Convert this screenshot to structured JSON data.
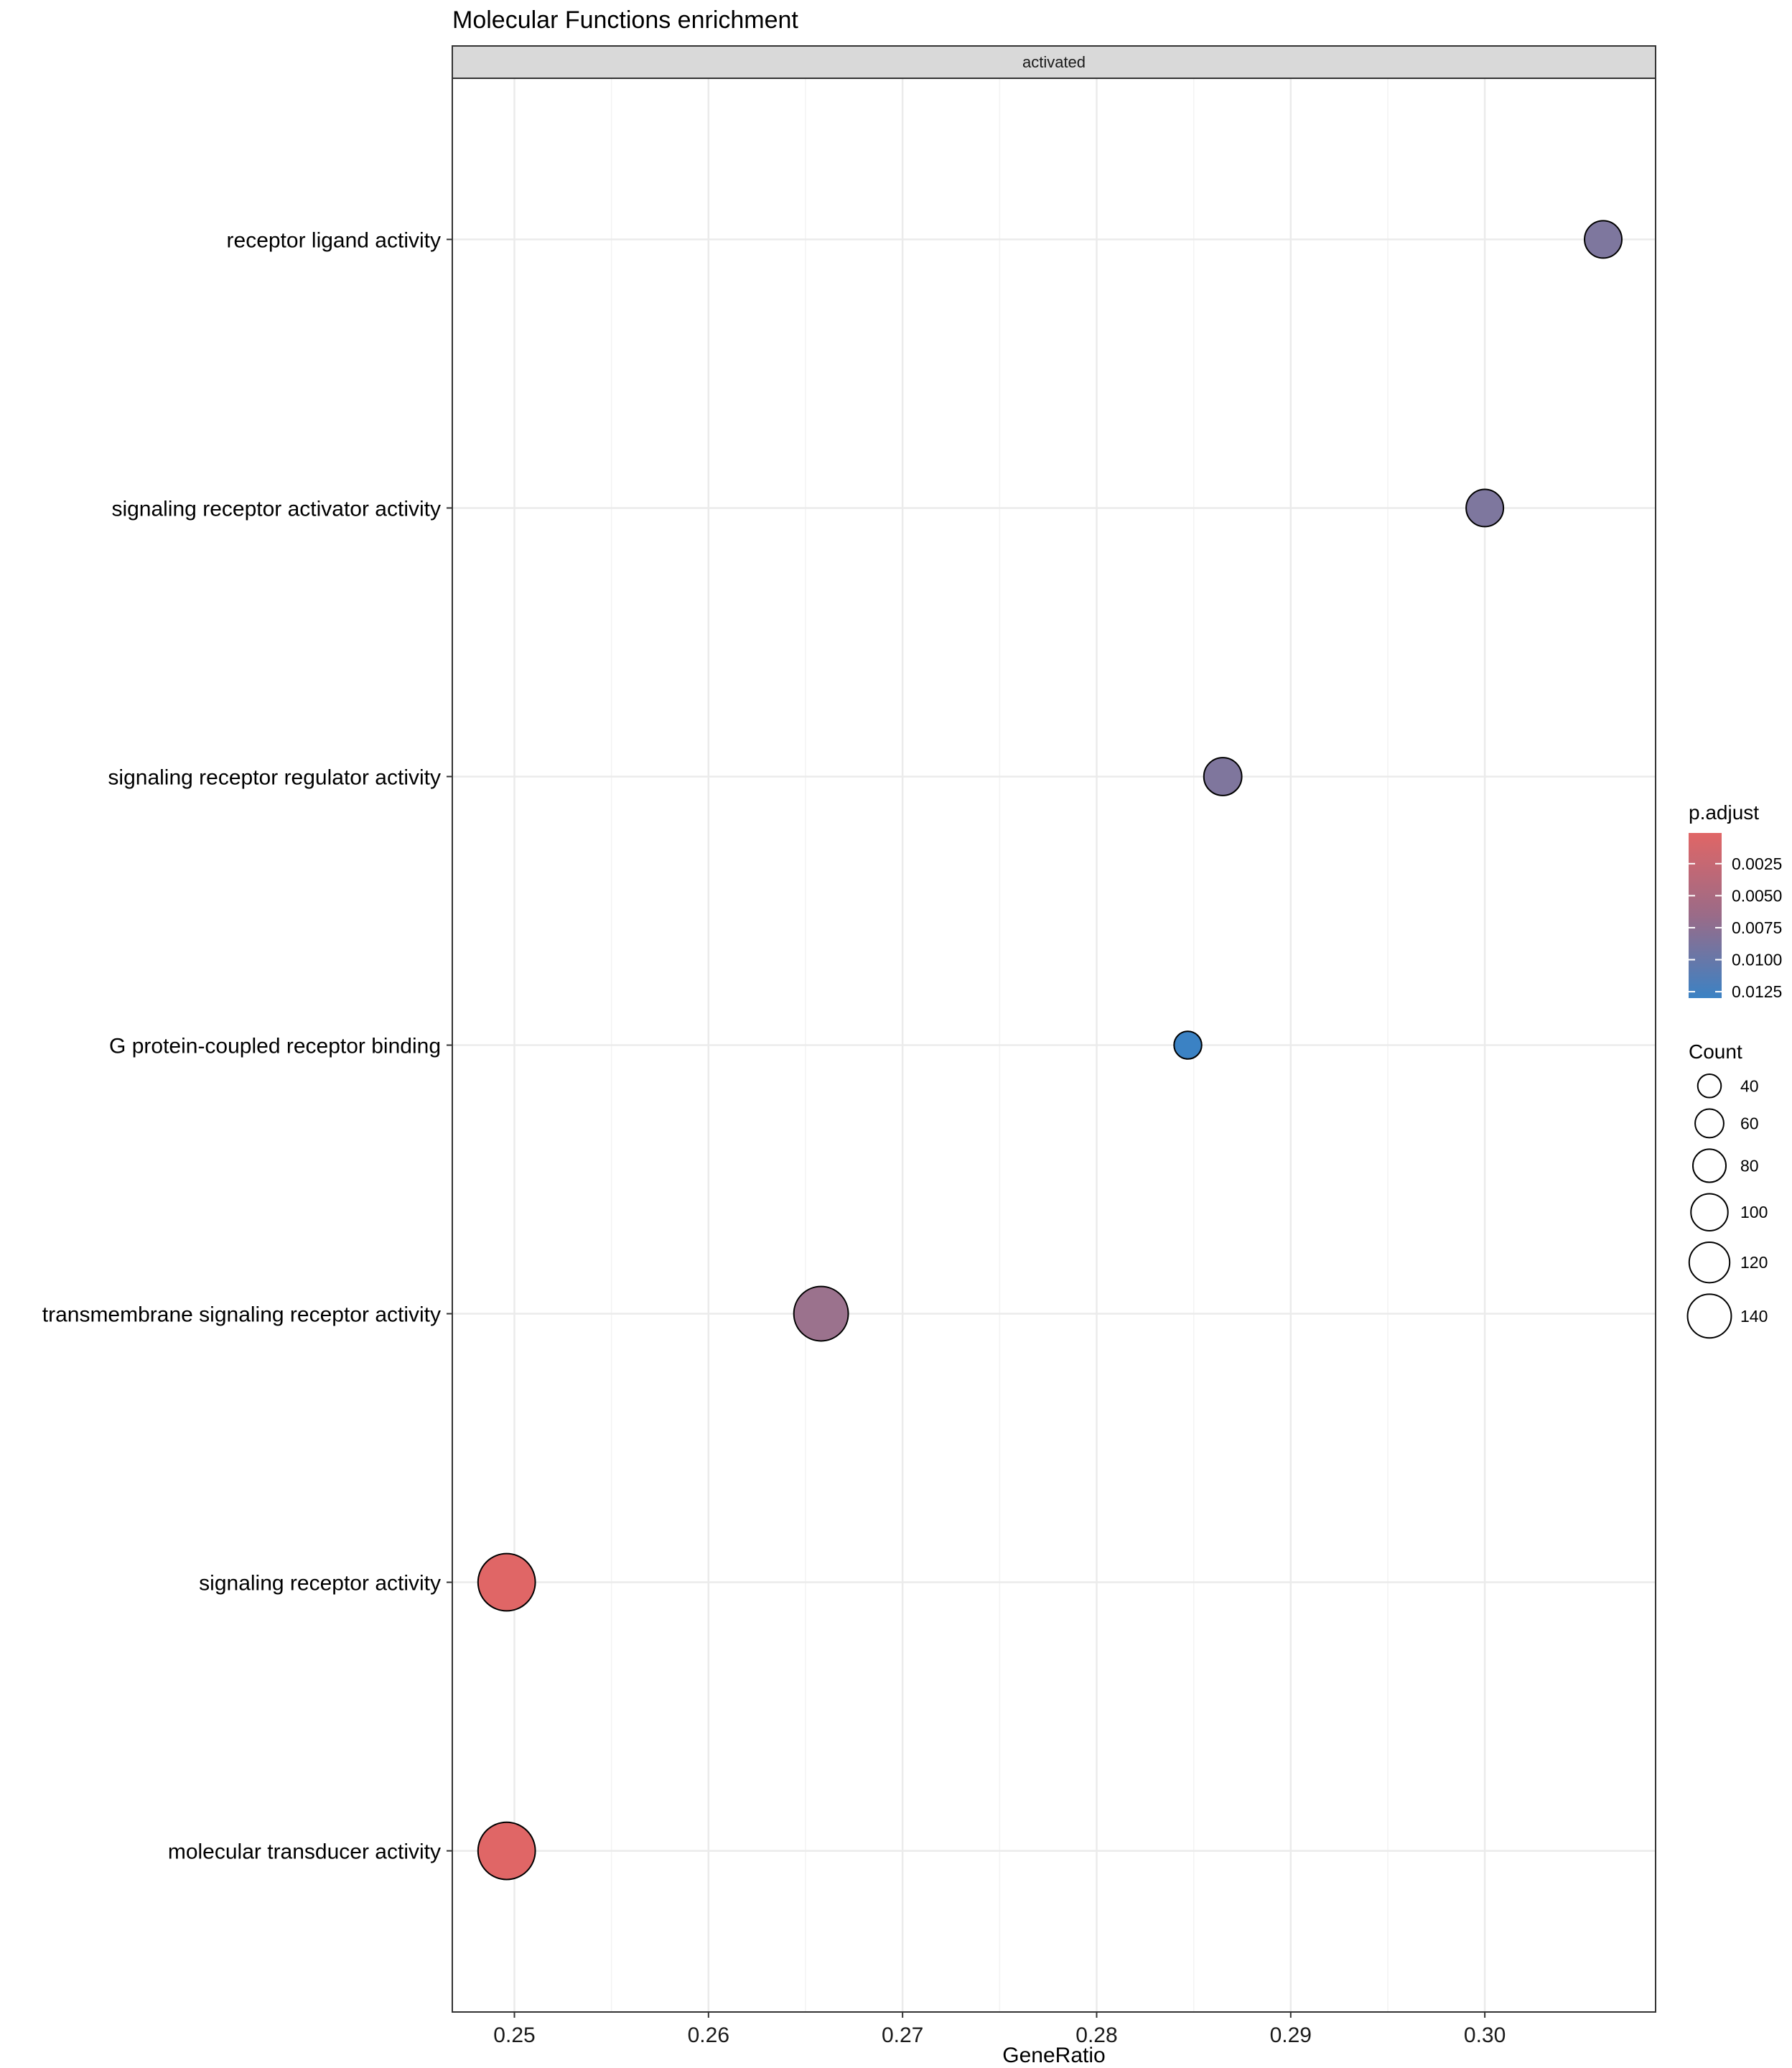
{
  "chart_data": {
    "type": "scatter",
    "title": "Molecular Functions enrichment",
    "facet_label": "activated",
    "xlabel": "GeneRatio",
    "ylabel": "",
    "xlim": [
      0.2468,
      0.3088
    ],
    "x_ticks": [
      "0.25",
      "0.26",
      "0.27",
      "0.28",
      "0.29",
      "0.30"
    ],
    "x_tick_values": [
      0.25,
      0.26,
      0.27,
      0.28,
      0.29,
      0.3
    ],
    "grid": true,
    "categories": [
      "receptor ligand activity",
      "signaling receptor activator activity",
      "signaling receptor regulator activity",
      "G protein-coupled receptor binding",
      "transmembrane signaling receptor activity",
      "signaling receptor activity",
      "molecular transducer activity"
    ],
    "points": [
      {
        "term": "receptor ligand activity",
        "gene_ratio": 0.3061,
        "count": 62,
        "p_adjust": 0.0078
      },
      {
        "term": "signaling receptor activator activity",
        "gene_ratio": 0.3,
        "count": 62,
        "p_adjust": 0.0078
      },
      {
        "term": "signaling receptor regulator activity",
        "gene_ratio": 0.2865,
        "count": 64,
        "p_adjust": 0.0077
      },
      {
        "term": "G protein-coupled receptor binding",
        "gene_ratio": 0.2847,
        "count": 34,
        "p_adjust": 0.013
      },
      {
        "term": "transmembrane signaling receptor activity",
        "gene_ratio": 0.2658,
        "count": 132,
        "p_adjust": 0.0055
      },
      {
        "term": "signaling receptor activity",
        "gene_ratio": 0.2496,
        "count": 146,
        "p_adjust": 0.0001
      },
      {
        "term": "molecular transducer activity",
        "gene_ratio": 0.2496,
        "count": 146,
        "p_adjust": 0.0001
      }
    ],
    "legend_color": {
      "title": "p.adjust",
      "placement": "right",
      "ticks": [
        "0.0025",
        "0.0050",
        "0.0075",
        "0.0100",
        "0.0125"
      ],
      "tick_values": [
        0.0025,
        0.005,
        0.0075,
        0.01,
        0.0125
      ],
      "range": [
        0.0001,
        0.013
      ],
      "low_color": "#e06666",
      "high_color": "#3b82c4"
    },
    "legend_size": {
      "title": "Count",
      "placement": "right",
      "labels": [
        "40",
        "60",
        "80",
        "100",
        "120",
        "140"
      ],
      "values": [
        40,
        60,
        80,
        100,
        120,
        140
      ]
    }
  }
}
